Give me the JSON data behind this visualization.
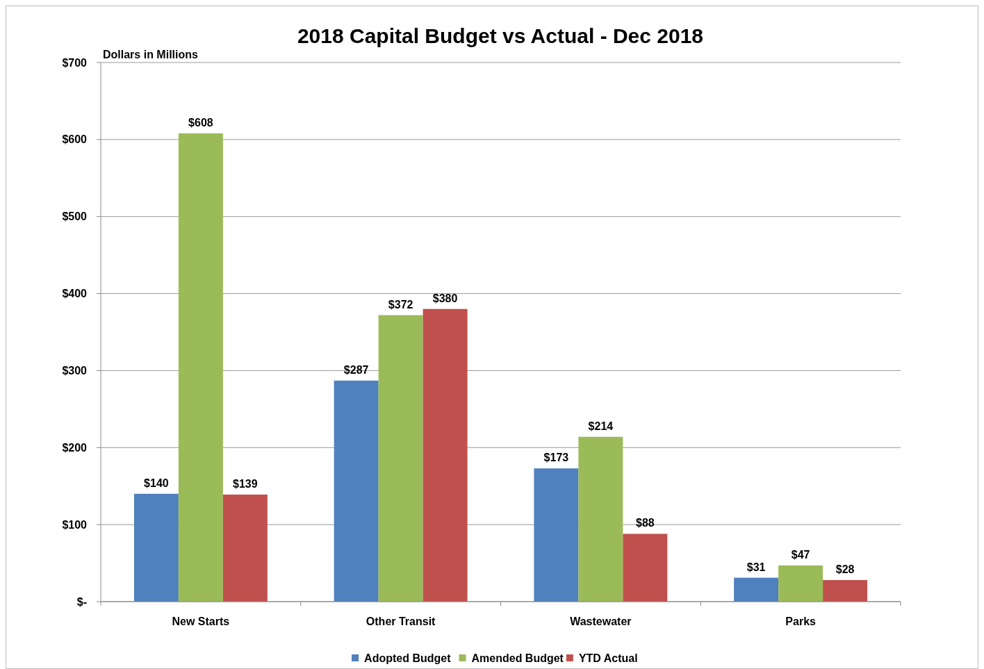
{
  "chart_data": {
    "type": "bar",
    "title": "2018 Capital Budget vs Actual - Dec 2018",
    "ylabel": "Dollars in Millions",
    "categories": [
      "New Starts",
      "Other Transit",
      "Wastewater",
      "Parks"
    ],
    "series": [
      {
        "name": "Adopted Budget",
        "color": "#4f81bd",
        "values": [
          140,
          287,
          173,
          31
        ],
        "value_labels": [
          "$140",
          "$287",
          "$173",
          "$31"
        ]
      },
      {
        "name": "Amended Budget",
        "color": "#9bbb59",
        "values": [
          608,
          372,
          214,
          47
        ],
        "value_labels": [
          "$608",
          "$372",
          "$214",
          "$47"
        ]
      },
      {
        "name": "YTD Actual",
        "color": "#c0504d",
        "values": [
          139,
          380,
          88,
          28
        ],
        "value_labels": [
          "$139",
          "$380",
          "$88",
          "$28"
        ]
      }
    ],
    "ylim": [
      0,
      700
    ],
    "yticks": [
      {
        "value": 0,
        "label": "$-"
      },
      {
        "value": 100,
        "label": "$100"
      },
      {
        "value": 200,
        "label": "$200"
      },
      {
        "value": 300,
        "label": "$300"
      },
      {
        "value": 400,
        "label": "$400"
      },
      {
        "value": 500,
        "label": "$500"
      },
      {
        "value": 600,
        "label": "$600"
      },
      {
        "value": 700,
        "label": "$700"
      }
    ],
    "grid": "y",
    "legend": "bottom"
  }
}
